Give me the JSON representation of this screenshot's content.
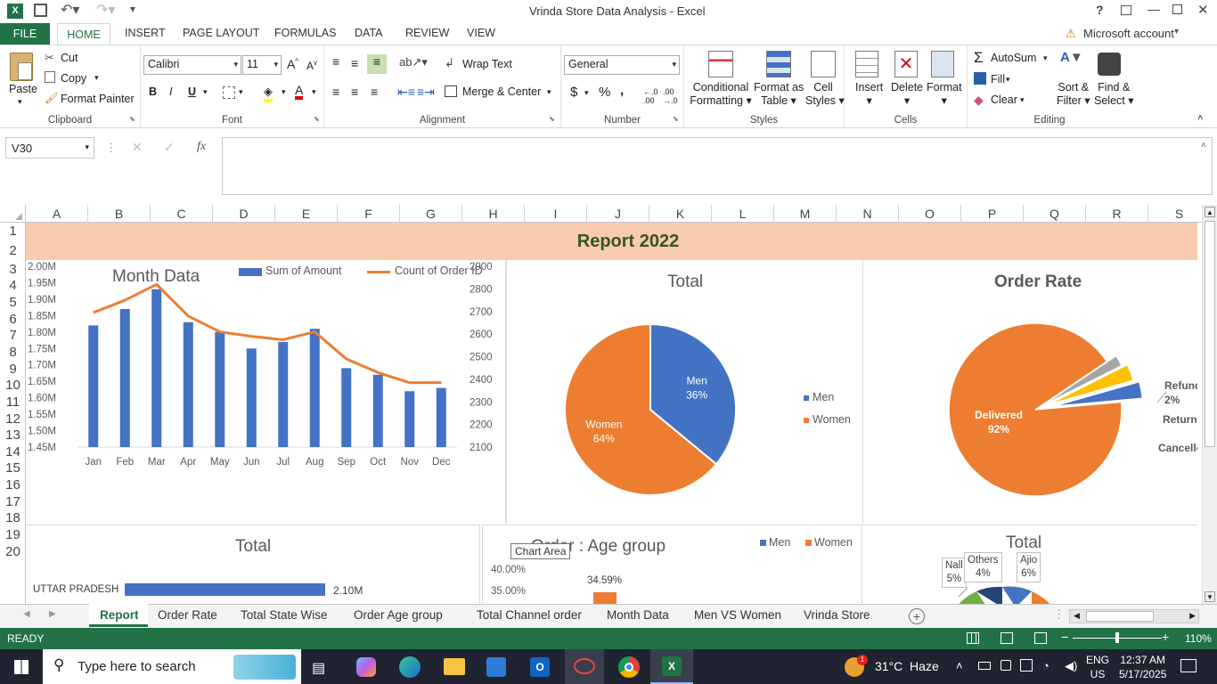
{
  "window": {
    "title": "Vrinda Store Data Analysis - Excel",
    "help": "?"
  },
  "ribbon_tabs": [
    "FILE",
    "HOME",
    "INSERT",
    "PAGE LAYOUT",
    "FORMULAS",
    "DATA",
    "REVIEW",
    "VIEW"
  ],
  "account": "Microsoft account",
  "clipboard": {
    "paste": "Paste",
    "cut": "Cut",
    "copy": "Copy",
    "format_painter": "Format Painter",
    "label": "Clipboard"
  },
  "font": {
    "name": "Calibri",
    "size": "11",
    "bold": "B",
    "italic": "I",
    "underline": "U",
    "label": "Font"
  },
  "alignment": {
    "wrap": "Wrap Text",
    "merge": "Merge & Center",
    "label": "Alignment"
  },
  "number": {
    "format": "General",
    "currency": "$",
    "percent": "%",
    "comma": ",",
    "label": "Number"
  },
  "styles": {
    "conditional": "Conditional",
    "formatting": "Formatting",
    "format_as": "Format as",
    "table": "Table",
    "cell": "Cell",
    "cell_styles": "Styles",
    "label": "Styles"
  },
  "cells": {
    "insert": "Insert",
    "delete": "Delete",
    "format": "Format",
    "label": "Cells"
  },
  "editing": {
    "autosum": "AutoSum",
    "fill": "Fill",
    "clear": "Clear",
    "sort": "Sort &",
    "filter": "Filter",
    "find": "Find &",
    "select": "Select",
    "label": "Editing"
  },
  "formula_bar": {
    "name_box": "V30",
    "fx": "fx",
    "value": ""
  },
  "columns": [
    "A",
    "B",
    "C",
    "D",
    "E",
    "F",
    "G",
    "H",
    "I",
    "J",
    "K",
    "L",
    "M",
    "N",
    "O",
    "P",
    "Q",
    "R",
    "S"
  ],
  "rows": [
    "1",
    "2",
    "3",
    "4",
    "5",
    "6",
    "7",
    "8",
    "9",
    "10",
    "11",
    "12",
    "13",
    "14",
    "15",
    "16",
    "17",
    "18",
    "19",
    "20"
  ],
  "report_title": "Report 2022",
  "chart_data": [
    {
      "type": "bar+line",
      "title": "Month Data",
      "categories": [
        "Jan",
        "Feb",
        "Mar",
        "Apr",
        "May",
        "Jun",
        "Jul",
        "Aug",
        "Sep",
        "Oct",
        "Nov",
        "Dec"
      ],
      "series": [
        {
          "name": "Sum of Amount",
          "type": "bar",
          "values": [
            1.82,
            1.87,
            1.93,
            1.83,
            1.8,
            1.75,
            1.77,
            1.81,
            1.69,
            1.67,
            1.62,
            1.63
          ]
        },
        {
          "name": "Count of Order ID",
          "type": "line",
          "axis": "secondary",
          "values": [
            2695,
            2750,
            2820,
            2680,
            2610,
            2590,
            2575,
            2610,
            2490,
            2430,
            2385,
            2385
          ]
        }
      ],
      "y_ticks": [
        "2.00M",
        "1.95M",
        "1.90M",
        "1.85M",
        "1.80M",
        "1.75M",
        "1.70M",
        "1.65M",
        "1.60M",
        "1.55M",
        "1.50M",
        "1.45M"
      ],
      "y2_ticks": [
        "2900",
        "2800",
        "2700",
        "2600",
        "2500",
        "2400",
        "2300",
        "2200",
        "2100"
      ],
      "ylim": [
        1.45,
        2.0
      ],
      "y2lim": [
        2100,
        2900
      ],
      "legend": "top"
    },
    {
      "type": "pie",
      "title": "Total",
      "slices": [
        {
          "name": "Men",
          "label": "Men",
          "pct": "36%",
          "value": 36,
          "color": "#4472C4"
        },
        {
          "name": "Women",
          "label": "Women",
          "pct": "64%",
          "value": 64,
          "color": "#ED7D31"
        }
      ],
      "legend": "right"
    },
    {
      "type": "pie",
      "title": "Order Rate",
      "slices": [
        {
          "name": "Delivered",
          "pct": "92%",
          "value": 92,
          "color": "#ED7D31"
        },
        {
          "name": "Refunded",
          "pct": "2%",
          "value": 2,
          "color": "#A5A5A5"
        },
        {
          "name": "Returned",
          "pct": "",
          "value": 3,
          "color": "#FFC000"
        },
        {
          "name": "Cancelle",
          "pct": "",
          "value": 3,
          "color": "#4472C4"
        }
      ]
    },
    {
      "type": "bar",
      "title": "Total",
      "categories": [
        "UTTAR PRADESH"
      ],
      "values": [
        2.1
      ],
      "value_labels": [
        "2.10M"
      ]
    },
    {
      "type": "bar",
      "title": "Order : Age group",
      "legend_items": [
        "Men",
        "Women"
      ],
      "y_ticks": [
        "40.00%",
        "35.00%"
      ],
      "value_labels": [
        "34.59%"
      ]
    },
    {
      "type": "donut",
      "title": "Total",
      "labels": [
        {
          "name": "Nalli",
          "pct": "5%",
          "display": "Nall"
        },
        {
          "name": "Others",
          "pct": "4%"
        },
        {
          "name": "Ajio",
          "pct": "6%"
        }
      ]
    }
  ],
  "tooltip": "Chart Area",
  "sheet_tabs": [
    "Report",
    "Order Rate",
    "Total State Wise",
    "Order  Age group",
    "Total Channel order",
    "Month Data",
    "Men VS Women",
    "Vrinda Store"
  ],
  "status": {
    "ready": "READY",
    "zoom": "110%"
  },
  "taskbar": {
    "search": "Type here to search",
    "weather": "31°C  Haze",
    "lang1": "ENG",
    "lang2": "US",
    "time": "12:37 AM",
    "date": "5/17/2025"
  }
}
